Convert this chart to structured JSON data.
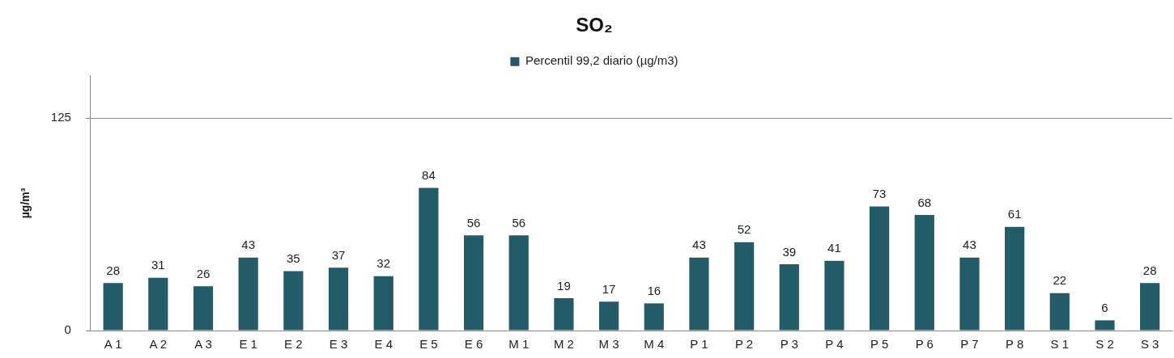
{
  "chart_data": {
    "type": "bar",
    "title": "SO₂",
    "ylabel": "µg/m³",
    "categories": [
      "A 1",
      "A 2",
      "A 3",
      "E 1",
      "E 2",
      "E 3",
      "E 4",
      "E 5",
      "E 6",
      "M 1",
      "M 2",
      "M 3",
      "M 4",
      "P 1",
      "P 2",
      "P 3",
      "P 4",
      "P 5",
      "P 6",
      "P 7",
      "P 8",
      "S 1",
      "S 2",
      "S 3"
    ],
    "series": [
      {
        "name": "Percentil 99,2 diario (µg/m3)",
        "color": "#245b69",
        "values": [
          28,
          31,
          26,
          43,
          35,
          37,
          32,
          84,
          56,
          56,
          19,
          17,
          16,
          43,
          52,
          39,
          41,
          73,
          68,
          43,
          61,
          22,
          6,
          28
        ]
      }
    ],
    "ylim": [
      0,
      150
    ],
    "yticks": [
      0,
      125
    ],
    "grid": "y",
    "legend": "top",
    "data_labels": true
  }
}
